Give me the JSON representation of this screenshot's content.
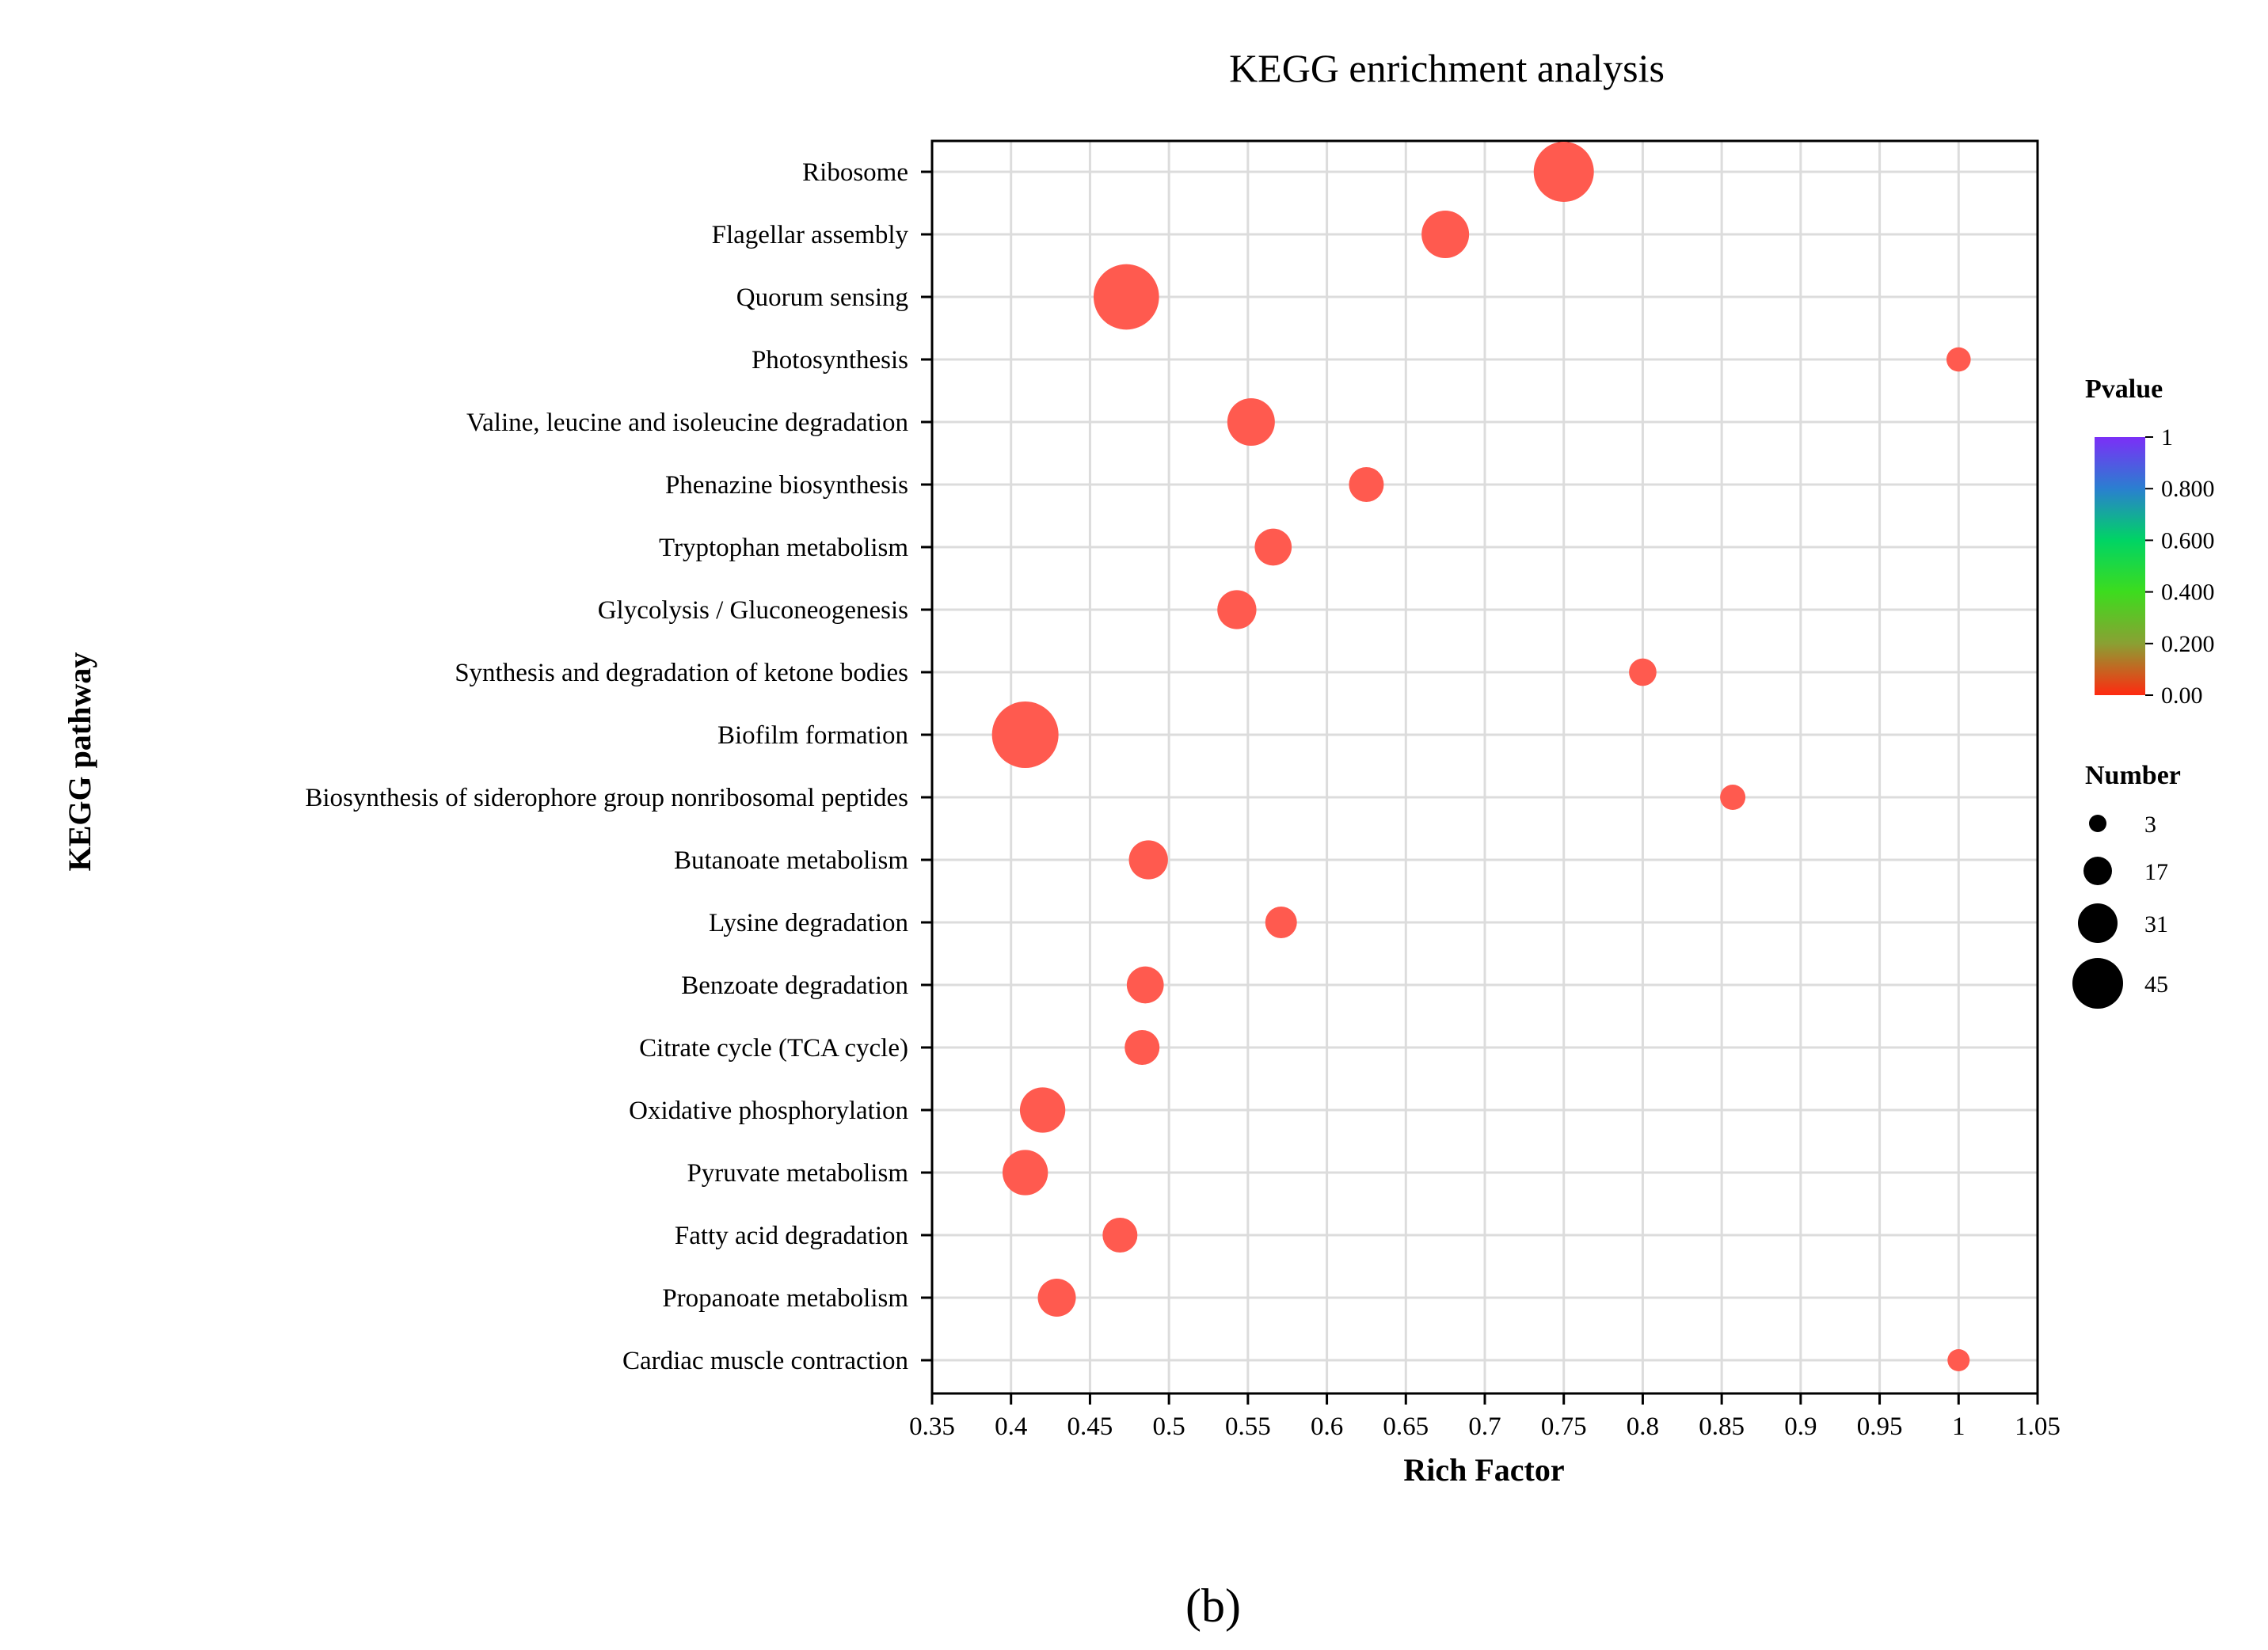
{
  "chart_data": {
    "type": "scatter",
    "title": "KEGG enrichment analysis",
    "xlabel": "Rich Factor",
    "ylabel": "KEGG pathway",
    "xlim": [
      0.35,
      1.05
    ],
    "xticks": [
      "0.35",
      "0.4",
      "0.45",
      "0.5",
      "0.55",
      "0.6",
      "0.65",
      "0.7",
      "0.75",
      "0.8",
      "0.85",
      "0.9",
      "0.95",
      "1",
      "1.05"
    ],
    "grid": true,
    "points": [
      {
        "pathway": "Ribosome",
        "rich_factor": 0.75,
        "number": 39,
        "pvalue": 0.0
      },
      {
        "pathway": "Flagellar assembly",
        "rich_factor": 0.675,
        "number": 27,
        "pvalue": 0.0
      },
      {
        "pathway": "Quorum sensing",
        "rich_factor": 0.473,
        "number": 44,
        "pvalue": 0.0
      },
      {
        "pathway": "Photosynthesis",
        "rich_factor": 1.0,
        "number": 5,
        "pvalue": 0.0
      },
      {
        "pathway": "Valine, leucine and isoleucine degradation",
        "rich_factor": 0.552,
        "number": 27,
        "pvalue": 0.0
      },
      {
        "pathway": "Phenazine biosynthesis",
        "rich_factor": 0.625,
        "number": 15,
        "pvalue": 0.0
      },
      {
        "pathway": "Tryptophan metabolism",
        "rich_factor": 0.566,
        "number": 17,
        "pvalue": 0.0
      },
      {
        "pathway": "Glycolysis / Gluconeogenesis",
        "rich_factor": 0.543,
        "number": 19,
        "pvalue": 0.0
      },
      {
        "pathway": "Synthesis and degradation of ketone bodies",
        "rich_factor": 0.8,
        "number": 8,
        "pvalue": 0.0
      },
      {
        "pathway": "Biofilm formation",
        "rich_factor": 0.409,
        "number": 45,
        "pvalue": 0.0
      },
      {
        "pathway": "Biosynthesis of siderophore group nonribosomal peptides",
        "rich_factor": 0.857,
        "number": 6,
        "pvalue": 0.0
      },
      {
        "pathway": "Butanoate metabolism",
        "rich_factor": 0.487,
        "number": 19,
        "pvalue": 0.0
      },
      {
        "pathway": "Lysine degradation",
        "rich_factor": 0.571,
        "number": 12,
        "pvalue": 0.0
      },
      {
        "pathway": "Benzoate degradation",
        "rich_factor": 0.485,
        "number": 17,
        "pvalue": 0.0
      },
      {
        "pathway": "Citrate cycle (TCA cycle)",
        "rich_factor": 0.483,
        "number": 15,
        "pvalue": 0.0
      },
      {
        "pathway": "Oxidative phosphorylation",
        "rich_factor": 0.42,
        "number": 25,
        "pvalue": 0.0
      },
      {
        "pathway": "Pyruvate metabolism",
        "rich_factor": 0.409,
        "number": 25,
        "pvalue": 0.0
      },
      {
        "pathway": "Fatty acid degradation",
        "rich_factor": 0.469,
        "number": 15,
        "pvalue": 0.0
      },
      {
        "pathway": "Propanoate metabolism",
        "rich_factor": 0.429,
        "number": 18,
        "pvalue": 0.0
      },
      {
        "pathway": "Cardiac muscle contraction",
        "rich_factor": 1.0,
        "number": 3,
        "pvalue": 0.0
      }
    ],
    "color_legend": {
      "title": "Pvalue",
      "ticks": [
        "1",
        "0.800",
        "0.600",
        "0.400",
        "0.200",
        "0.00"
      ],
      "colors": [
        "#7b2ff7",
        "#2a7fd0",
        "#00d464",
        "#3ddc1e",
        "#8aa033",
        "#ff2a10"
      ]
    },
    "size_legend": {
      "title": "Number",
      "values": [
        3,
        17,
        31,
        45
      ],
      "labels": [
        "3",
        "17",
        "31",
        "45"
      ]
    },
    "point_color": "#ff5a4f"
  },
  "caption": "(b)"
}
